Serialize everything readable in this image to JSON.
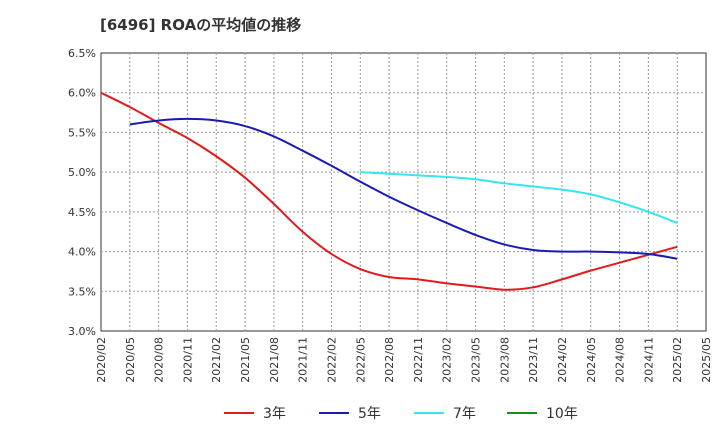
{
  "chart_data": {
    "type": "line",
    "title": "[6496]  ROAの平均値の推移",
    "xlabel": "",
    "ylabel": "",
    "ylim": [
      3.0,
      6.5
    ],
    "y_ticks": [
      "3.0%",
      "3.5%",
      "4.0%",
      "4.5%",
      "5.0%",
      "5.5%",
      "6.0%",
      "6.5%"
    ],
    "categories": [
      "2020/02",
      "2020/05",
      "2020/08",
      "2020/11",
      "2021/02",
      "2021/05",
      "2021/08",
      "2021/11",
      "2022/02",
      "2022/05",
      "2022/08",
      "2022/11",
      "2023/02",
      "2023/05",
      "2023/08",
      "2023/11",
      "2024/02",
      "2024/05",
      "2024/08",
      "2024/11",
      "2025/02",
      "2025/05"
    ],
    "grid": true,
    "legend_position": "bottom",
    "series": [
      {
        "name": "3年",
        "color": "#e31a1c",
        "values": [
          6.0,
          5.82,
          5.62,
          5.43,
          5.2,
          4.93,
          4.6,
          4.25,
          3.97,
          3.78,
          3.68,
          3.65,
          3.6,
          3.56,
          3.52,
          3.55,
          3.65,
          3.76,
          3.86,
          3.96,
          4.06,
          null
        ]
      },
      {
        "name": "5年",
        "color": "#1a1ab5",
        "values": [
          null,
          5.6,
          5.65,
          5.67,
          5.65,
          5.58,
          5.45,
          5.27,
          5.08,
          4.88,
          4.69,
          4.52,
          4.36,
          4.21,
          4.09,
          4.02,
          4.0,
          4.0,
          3.99,
          3.97,
          3.91,
          null
        ]
      },
      {
        "name": "7年",
        "color": "#33e6f0",
        "values": [
          null,
          null,
          null,
          null,
          null,
          null,
          null,
          null,
          null,
          5.0,
          4.98,
          4.96,
          4.94,
          4.91,
          4.86,
          4.82,
          4.78,
          4.72,
          4.62,
          4.5,
          4.36,
          null
        ]
      },
      {
        "name": "10年",
        "color": "#1a8c1a",
        "values": [
          null,
          null,
          null,
          null,
          null,
          null,
          null,
          null,
          null,
          null,
          null,
          null,
          null,
          null,
          null,
          null,
          null,
          null,
          null,
          null,
          null,
          null
        ]
      }
    ]
  }
}
